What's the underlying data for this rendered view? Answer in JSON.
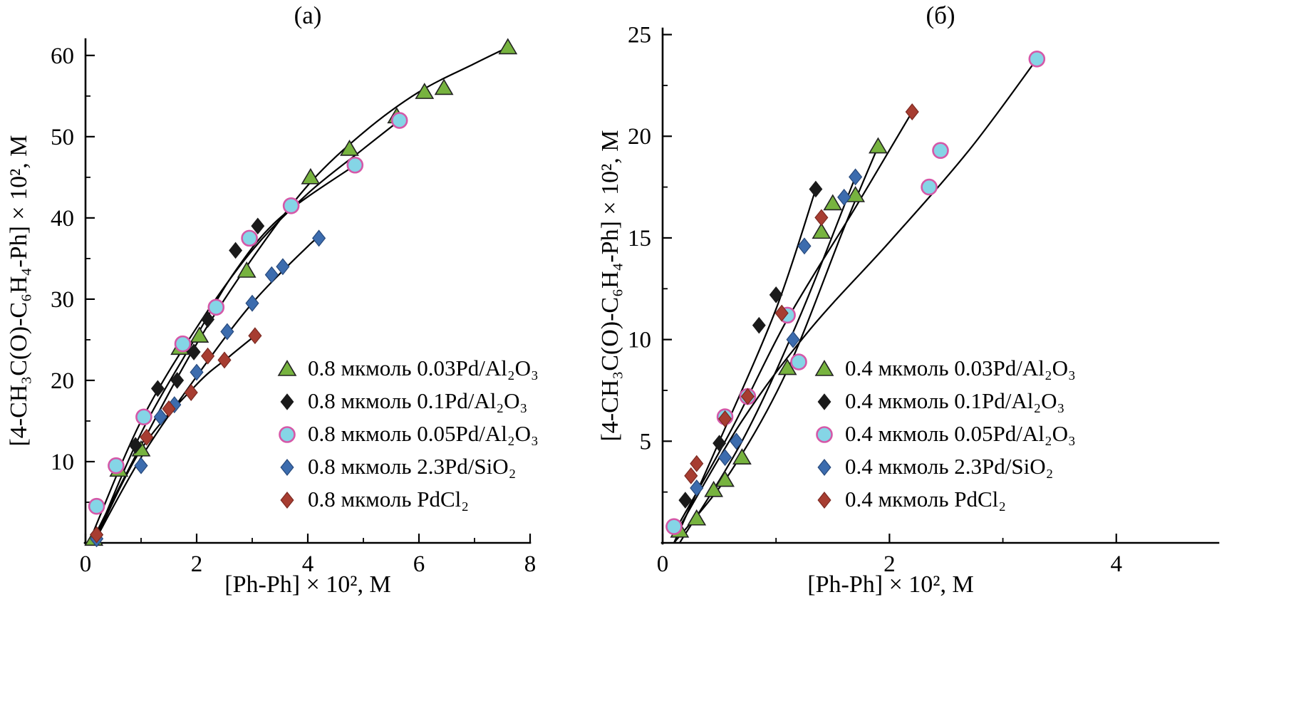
{
  "figure": {
    "background": "#ffffff",
    "text_color": "#000000",
    "curve_color": "#000000"
  },
  "chart_data": [
    {
      "type": "scatter",
      "panel_label": "(а)",
      "xlabel": "[Ph-Ph] × 10², M",
      "ylabel": "[4-CH₃C(O)-C₆H₄-Ph] × 10², M",
      "xlim": [
        0,
        8
      ],
      "ylim": [
        0,
        62
      ],
      "xticks": [
        0,
        2,
        4,
        6,
        8
      ],
      "yticks": [
        10,
        20,
        30,
        40,
        50,
        60
      ],
      "x_minor_step": 1,
      "y_minor_step": 5,
      "grid": false,
      "legend_position": "lower right",
      "series": [
        {
          "name": "0.8 мкмоль 0.03Pd/Al₂O₃",
          "marker": "triangle",
          "fill": "#77b33f",
          "edge": "#222222",
          "edge_width": 1.6,
          "size": 12,
          "points": [
            [
              0.15,
              0.5
            ],
            [
              0.6,
              9.0
            ],
            [
              1.0,
              11.5
            ],
            [
              1.7,
              24.0
            ],
            [
              2.05,
              25.5
            ],
            [
              2.9,
              33.5
            ],
            [
              4.05,
              45.0
            ],
            [
              4.75,
              48.5
            ],
            [
              5.6,
              52.5
            ],
            [
              6.1,
              55.5
            ],
            [
              6.45,
              56.0
            ],
            [
              7.6,
              61.0
            ]
          ],
          "curve": [
            [
              0.1,
              0
            ],
            [
              1,
              12
            ],
            [
              2,
              24.5
            ],
            [
              3,
              35
            ],
            [
              4,
              44
            ],
            [
              5,
              50.5
            ],
            [
              6,
              55.5
            ],
            [
              7,
              59
            ],
            [
              7.6,
              61
            ]
          ]
        },
        {
          "name": "0.8 мкмоль 0.1Pd/Al₂O₃",
          "marker": "diamond",
          "fill": "#1a1a1a",
          "edge": "#1a1a1a",
          "edge_width": 1,
          "size": 11,
          "points": [
            [
              0.2,
              1.0
            ],
            [
              0.9,
              12.0
            ],
            [
              1.3,
              19.0
            ],
            [
              1.65,
              20.0
            ],
            [
              1.95,
              23.5
            ],
            [
              2.2,
              27.5
            ],
            [
              2.7,
              36.0
            ],
            [
              3.1,
              39.0
            ],
            [
              4.85,
              46.5
            ]
          ],
          "curve": [
            [
              0.15,
              0
            ],
            [
              1,
              13.5
            ],
            [
              2,
              25.5
            ],
            [
              2.7,
              33.5
            ],
            [
              3.5,
              40
            ],
            [
              4.85,
              46.5
            ]
          ]
        },
        {
          "name": "0.8 мкмоль 0.05Pd/Al₂O₃",
          "marker": "circle",
          "fill": "#85d5e6",
          "edge": "#d558a8",
          "edge_width": 2.6,
          "size": 10.5,
          "points": [
            [
              0.2,
              4.5
            ],
            [
              0.55,
              9.5
            ],
            [
              1.05,
              15.5
            ],
            [
              1.75,
              24.5
            ],
            [
              2.35,
              29.0
            ],
            [
              2.95,
              37.5
            ],
            [
              3.7,
              41.5
            ],
            [
              4.85,
              46.5
            ],
            [
              5.65,
              52.0
            ]
          ],
          "curve": [
            [
              0.15,
              1.5
            ],
            [
              1,
              15
            ],
            [
              2,
              26.5
            ],
            [
              3,
              36
            ],
            [
              4,
              43
            ],
            [
              5,
              48.5
            ],
            [
              5.65,
              52
            ]
          ]
        },
        {
          "name": "0.8 мкмоль 2.3Pd/SiO₂",
          "marker": "diamond",
          "fill": "#3c6cae",
          "edge": "#27497c",
          "edge_width": 1.2,
          "size": 11,
          "points": [
            [
              0.2,
              0.5
            ],
            [
              1.0,
              9.5
            ],
            [
              1.35,
              15.5
            ],
            [
              1.6,
              17.0
            ],
            [
              2.0,
              21.0
            ],
            [
              2.55,
              26.0
            ],
            [
              3.0,
              29.5
            ],
            [
              3.35,
              33.0
            ],
            [
              3.55,
              34.0
            ],
            [
              4.2,
              37.5
            ]
          ],
          "curve": [
            [
              0.15,
              0
            ],
            [
              1,
              10.5
            ],
            [
              2,
              20.5
            ],
            [
              3,
              29.5
            ],
            [
              4,
              36.5
            ],
            [
              4.2,
              37.5
            ]
          ]
        },
        {
          "name": "0.8 мкмоль PdCl₂",
          "marker": "diamond",
          "fill": "#a73d31",
          "edge": "#7c2a22",
          "edge_width": 1.2,
          "size": 11,
          "points": [
            [
              0.2,
              1.0
            ],
            [
              1.1,
              13.0
            ],
            [
              1.5,
              16.5
            ],
            [
              1.9,
              18.5
            ],
            [
              2.2,
              23.0
            ],
            [
              2.5,
              22.5
            ],
            [
              3.05,
              25.5
            ]
          ],
          "curve": [
            [
              0.15,
              0
            ],
            [
              1,
              11.5
            ],
            [
              2,
              19.5
            ],
            [
              2.6,
              23
            ],
            [
              3.05,
              25.5
            ]
          ]
        }
      ]
    },
    {
      "type": "scatter",
      "panel_label": "(б)",
      "xlabel": "[Ph-Ph] × 10², M",
      "ylabel": "[4-CH₃C(O)-C₆H₄-Ph] × 10², M",
      "xlim": [
        0,
        4.9
      ],
      "ylim": [
        0,
        25.3
      ],
      "xticks": [
        0,
        2,
        4
      ],
      "yticks": [
        5,
        10,
        15,
        20,
        25
      ],
      "x_minor_step": 1,
      "y_minor_step": 2.5,
      "grid": false,
      "legend_position": "lower right",
      "series": [
        {
          "name": "0.4 мкмоль 0.03Pd/Al₂O₃",
          "marker": "triangle",
          "fill": "#77b33f",
          "edge": "#222222",
          "edge_width": 1.6,
          "size": 12,
          "points": [
            [
              0.15,
              0.6
            ],
            [
              0.3,
              1.2
            ],
            [
              0.45,
              2.6
            ],
            [
              0.55,
              3.1
            ],
            [
              0.7,
              4.2
            ],
            [
              1.1,
              8.6
            ],
            [
              1.4,
              15.3
            ],
            [
              1.5,
              16.7
            ],
            [
              1.7,
              17.1
            ],
            [
              1.9,
              19.5
            ]
          ],
          "curve": [
            [
              0.1,
              0
            ],
            [
              0.6,
              3.5
            ],
            [
              1.1,
              8.5
            ],
            [
              1.6,
              15.5
            ],
            [
              1.9,
              19.5
            ]
          ]
        },
        {
          "name": "0.4 мкмоль 0.1Pd/Al₂O₃",
          "marker": "diamond",
          "fill": "#1a1a1a",
          "edge": "#1a1a1a",
          "edge_width": 1,
          "size": 11,
          "points": [
            [
              0.2,
              2.1
            ],
            [
              0.5,
              4.9
            ],
            [
              0.85,
              10.7
            ],
            [
              1.0,
              12.2
            ],
            [
              1.35,
              17.4
            ]
          ],
          "curve": [
            [
              0.1,
              0
            ],
            [
              0.5,
              5
            ],
            [
              1.0,
              11.5
            ],
            [
              1.35,
              17.4
            ]
          ]
        },
        {
          "name": "0.4 мкмоль 0.05Pd/Al₂O₃",
          "marker": "circle",
          "fill": "#85d5e6",
          "edge": "#d558a8",
          "edge_width": 2.6,
          "size": 10.5,
          "points": [
            [
              0.1,
              0.8
            ],
            [
              0.55,
              6.2
            ],
            [
              0.75,
              7.2
            ],
            [
              1.1,
              11.2
            ],
            [
              1.2,
              8.9
            ],
            [
              2.35,
              17.5
            ],
            [
              2.45,
              19.3
            ],
            [
              3.3,
              23.8
            ]
          ],
          "curve": [
            [
              0.1,
              0.3
            ],
            [
              0.7,
              6
            ],
            [
              1.3,
              10.5
            ],
            [
              2,
              14.8
            ],
            [
              2.7,
              19.3
            ],
            [
              3.3,
              23.8
            ]
          ]
        },
        {
          "name": "0.4 мкмоль 2.3Pd/SiO₂",
          "marker": "diamond",
          "fill": "#3c6cae",
          "edge": "#27497c",
          "edge_width": 1.2,
          "size": 11,
          "points": [
            [
              0.3,
              2.7
            ],
            [
              0.55,
              4.2
            ],
            [
              0.65,
              5.0
            ],
            [
              1.15,
              10.0
            ],
            [
              1.25,
              14.6
            ],
            [
              1.6,
              17.0
            ],
            [
              1.7,
              18.0
            ]
          ],
          "curve": [
            [
              0.15,
              0
            ],
            [
              0.7,
              5
            ],
            [
              1.2,
              11
            ],
            [
              1.7,
              18
            ]
          ]
        },
        {
          "name": "0.4 мкмоль PdCl₂",
          "marker": "diamond",
          "fill": "#a73d31",
          "edge": "#7c2a22",
          "edge_width": 1.2,
          "size": 11,
          "points": [
            [
              0.25,
              3.3
            ],
            [
              0.3,
              3.9
            ],
            [
              0.55,
              6.1
            ],
            [
              0.75,
              7.2
            ],
            [
              1.05,
              11.3
            ],
            [
              1.4,
              16.0
            ],
            [
              2.2,
              21.2
            ]
          ],
          "curve": [
            [
              0.1,
              0.5
            ],
            [
              0.6,
              5.5
            ],
            [
              1.1,
              11
            ],
            [
              1.7,
              16.5
            ],
            [
              2.2,
              21.2
            ]
          ]
        }
      ]
    }
  ]
}
